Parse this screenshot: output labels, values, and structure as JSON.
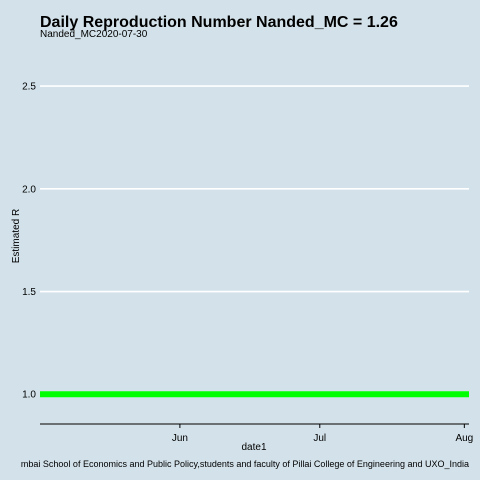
{
  "colors": {
    "background": "#d3e2ea",
    "gridline": "#ffffff",
    "series_line": "#00ff00",
    "axis_line": "#000000"
  },
  "chart_data": {
    "type": "line",
    "title": "Daily Reproduction Number Nanded_MC = 1.26",
    "subtitle": "Nanded_MC2020-07-30",
    "xlabel": "date1",
    "ylabel": "Estimated R",
    "caption": "mbai School of Economics and Public Policy,students and faculty of Pillai College of Engineering and UXO_India",
    "x_tick_labels": [
      "Jun",
      "Jul",
      "Aug"
    ],
    "x_tick_dates": [
      "2020-06-01",
      "2020-07-01",
      "2020-08-01"
    ],
    "xlim": [
      "2020-05-02",
      "2020-08-02"
    ],
    "y_ticks": [
      1.0,
      1.5,
      2.0,
      2.5
    ],
    "y_tick_labels": [
      "1.0",
      "1.5",
      "2.0",
      "2.5"
    ],
    "ylim": [
      0.86,
      2.7
    ],
    "grid": true,
    "legend": "none",
    "series": [
      {
        "x": [
          "2020-05-02",
          "2020-08-02"
        ],
        "values": [
          1.0,
          1.0
        ]
      }
    ]
  }
}
